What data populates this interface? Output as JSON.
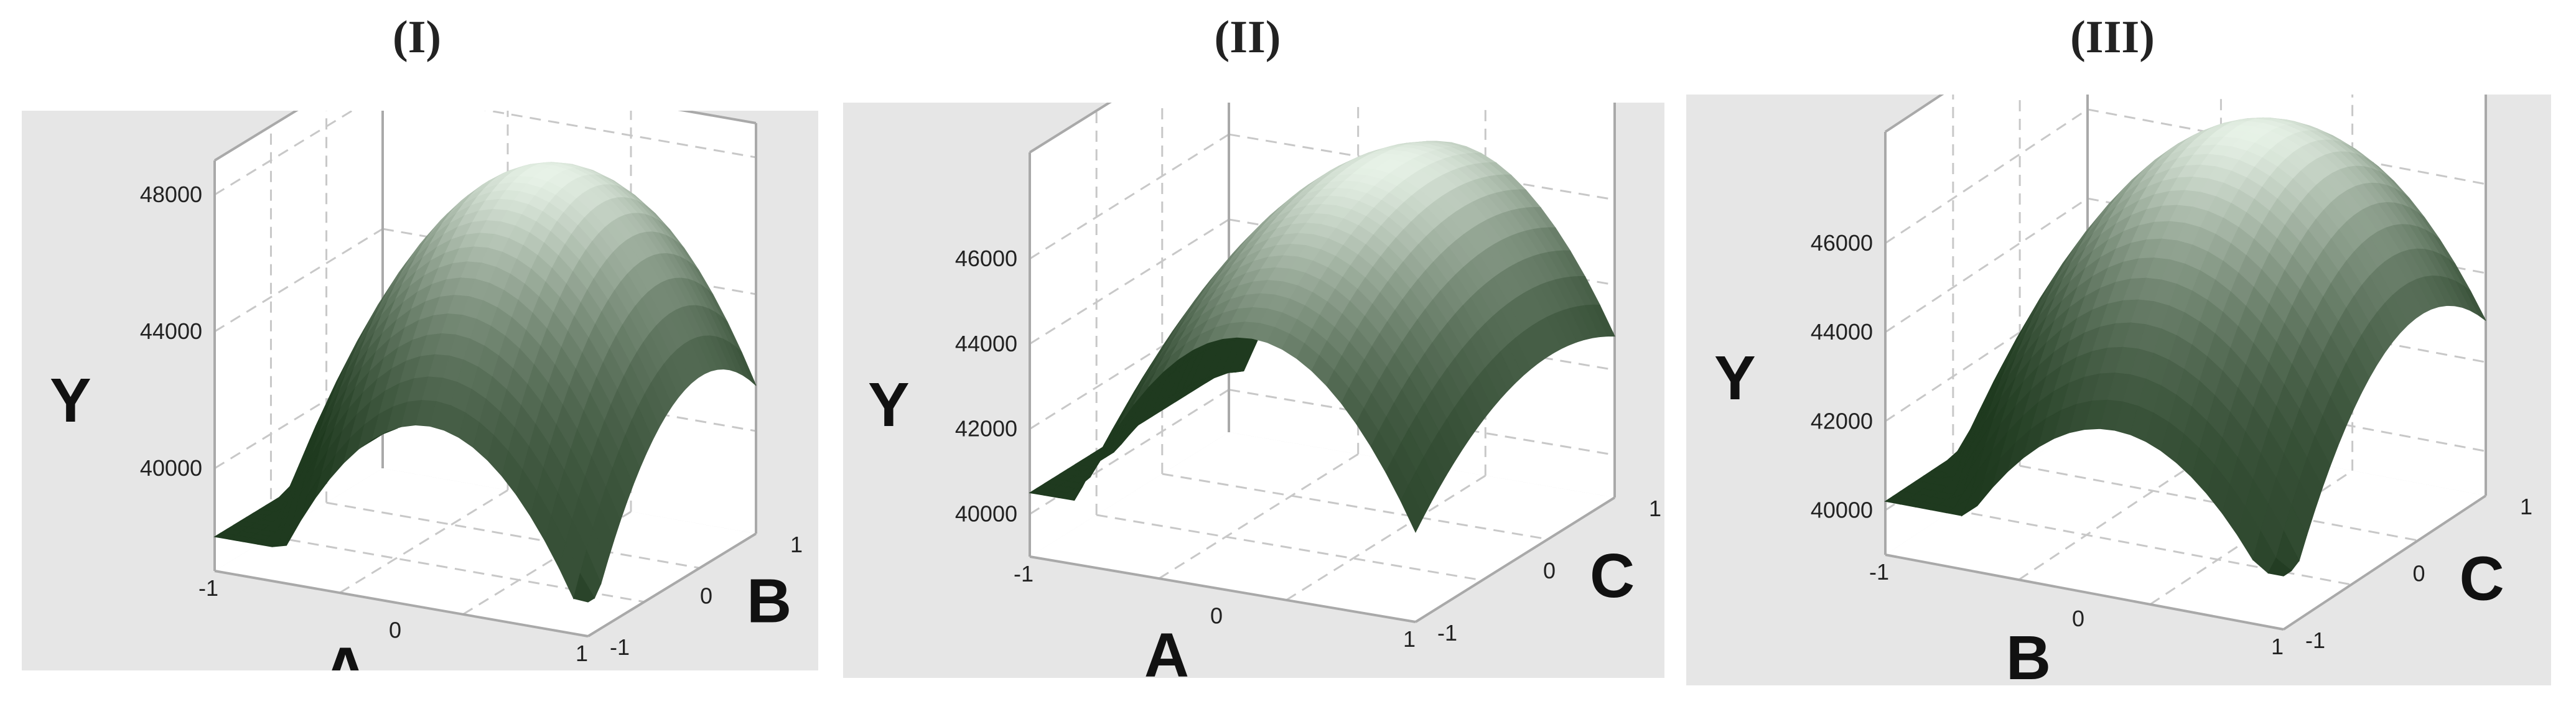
{
  "chart_data": [
    {
      "type": "surface",
      "panel_label": "(I)",
      "xlabel": "A",
      "ylabel": "B",
      "zlabel": "Y",
      "x_ticks": [
        "-1",
        "0",
        "1"
      ],
      "y_ticks": [
        "-1",
        "0",
        "1"
      ],
      "z_ticks": [
        "40000",
        "44000",
        "48000"
      ],
      "xlim": [
        -1,
        1
      ],
      "ylim": [
        -1,
        1
      ],
      "zlim": [
        37000,
        49000
      ],
      "surface": {
        "center_value": 47800,
        "a_curvature": 7200,
        "b_curvature": 3000,
        "corner_min": 38000
      },
      "color": "#2e5a2e"
    },
    {
      "type": "surface",
      "panel_label": "(II)",
      "xlabel": "A",
      "ylabel": "C",
      "zlabel": "Y",
      "x_ticks": [
        "-1",
        "0",
        "1"
      ],
      "y_ticks": [
        "-1",
        "0",
        "1"
      ],
      "z_ticks": [
        "40000",
        "42000",
        "44000",
        "46000"
      ],
      "xlim": [
        -1,
        1
      ],
      "ylim": [
        -1,
        1
      ],
      "zlim": [
        39000,
        48500
      ],
      "surface": {
        "center_value": 47200,
        "a_curvature": 5400,
        "c_curvature": 1200,
        "corner_min": 40500
      },
      "color": "#2e5a2e"
    },
    {
      "type": "surface",
      "panel_label": "(III)",
      "xlabel": "B",
      "ylabel": "C",
      "zlabel": "Y",
      "x_ticks": [
        "-1",
        "0",
        "1"
      ],
      "y_ticks": [
        "-1",
        "0",
        "1"
      ],
      "z_ticks": [
        "40000",
        "42000",
        "44000",
        "46000"
      ],
      "xlim": [
        -1,
        1
      ],
      "ylim": [
        -1,
        1
      ],
      "zlim": [
        39000,
        48500
      ],
      "surface": {
        "center_value": 47500,
        "b_curvature": 4800,
        "c_curvature": 2600,
        "corner_min": 40200
      },
      "color": "#2e5a2e"
    }
  ],
  "colors": {
    "panel_bg": "#e6e6e6",
    "surface_dark": "#1f3a1f",
    "surface_light": "#e8f3e8",
    "grid": "#c8c8c8",
    "frame": "#a9a9a9"
  }
}
